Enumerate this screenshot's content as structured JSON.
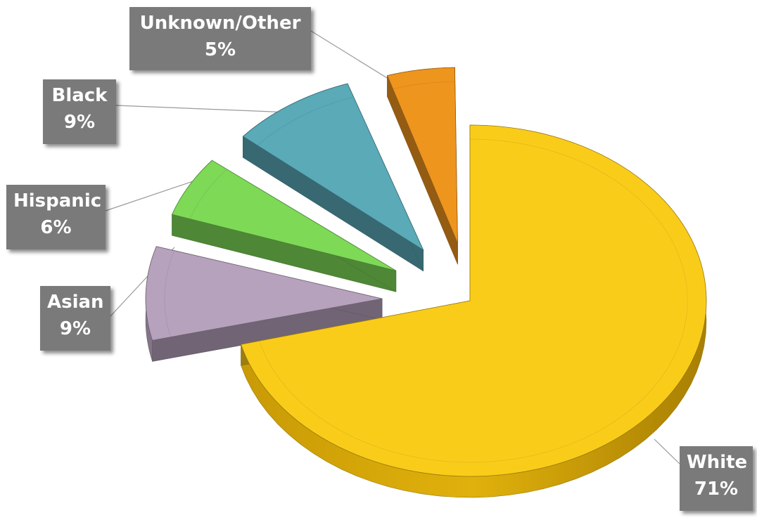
{
  "chart_data": {
    "type": "pie",
    "style": "3d exploded",
    "title": "",
    "slices": [
      {
        "label": "White",
        "value": 71,
        "value_label": "71%",
        "color": "#FACC1A"
      },
      {
        "label": "Asian",
        "value": 9,
        "value_label": "9%",
        "color": "#B6A2BC"
      },
      {
        "label": "Hispanic",
        "value": 6,
        "value_label": "6%",
        "color": "#7ED957"
      },
      {
        "label": "Black",
        "value": 9,
        "value_label": "9%",
        "color": "#5AAAB8"
      },
      {
        "label": "Unknown/Other",
        "value": 5,
        "value_label": "5%",
        "color": "#EE951E"
      }
    ],
    "label_box_color": "#7A7A7A",
    "label_text_color": "#FFFFFF"
  }
}
